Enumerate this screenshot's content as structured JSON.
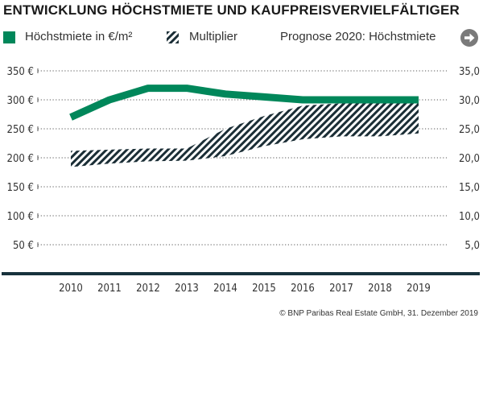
{
  "title": "ENTWICKLUNG HÖCHSTMIETE UND KAUFPREISVERVIELFÄLTIGER",
  "legend": {
    "rent": "Höchstmiete in €/m²",
    "multiplier": "Multiplier",
    "forecast": "Prognose 2020: Höchstmiete",
    "forecast_icon": "arrow-right-circle-icon"
  },
  "footer": "© BNP Paribas Real Estate GmbH, 31. Dezember 2019",
  "colors": {
    "rent": "#00875a",
    "hatch": "#1b2e36",
    "baseline": "#17323c",
    "grid": "#555555"
  },
  "chart_data": {
    "type": "line",
    "categories": [
      "2010",
      "2011",
      "2012",
      "2013",
      "2014",
      "2015",
      "2016",
      "2017",
      "2018",
      "2019"
    ],
    "left_axis": {
      "ticks": [
        50,
        100,
        150,
        200,
        250,
        300,
        350
      ],
      "tick_labels": [
        "50 €",
        "100 €",
        "150 €",
        "200 €",
        "250 €",
        "300 €",
        "350 €"
      ],
      "ylim": [
        0,
        350
      ]
    },
    "right_axis": {
      "ticks": [
        5,
        10,
        15,
        20,
        25,
        30,
        35
      ],
      "tick_labels": [
        "5,0",
        "10,0",
        "15,0",
        "20,0",
        "25,0",
        "30,0",
        "35,0"
      ],
      "ylim": [
        0,
        35
      ]
    },
    "grid": true,
    "series": [
      {
        "name": "Höchstmiete in €/m²",
        "axis": "left",
        "kind": "line",
        "values": [
          270,
          300,
          320,
          320,
          310,
          305,
          300,
          300,
          300,
          300
        ]
      },
      {
        "name": "Multiplier",
        "axis": "right",
        "kind": "band",
        "low": [
          18.4,
          19.0,
          19.4,
          19.5,
          20.3,
          22.0,
          23.2,
          23.7,
          23.7,
          24.2
        ],
        "high": [
          21.2,
          21.4,
          21.6,
          21.6,
          25.0,
          27.2,
          29.0,
          29.4,
          29.5,
          29.5
        ]
      }
    ]
  }
}
